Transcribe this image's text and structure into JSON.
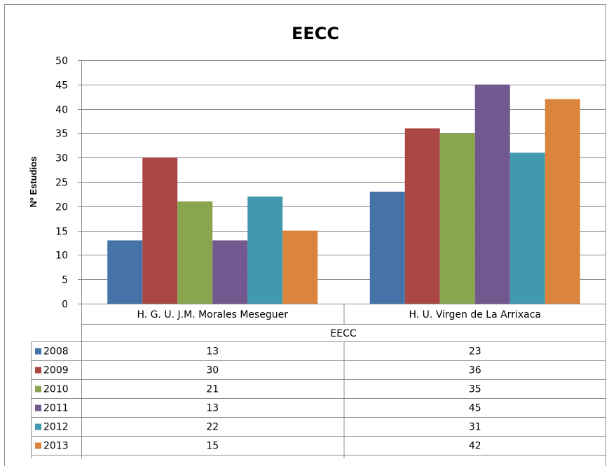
{
  "chart_data": {
    "type": "bar",
    "title": "EECC",
    "xlabel": "EECC",
    "ylabel": "Nº Estudios",
    "ylim": [
      0,
      50
    ],
    "yticks": [
      0,
      5,
      10,
      15,
      20,
      25,
      30,
      35,
      40,
      45,
      50
    ],
    "grid": true,
    "categories": [
      "H. G. U. J.M. Morales Meseguer",
      "H. U. Virgen de La Arrixaca"
    ],
    "series": [
      {
        "name": "2008",
        "color": "#4572A7",
        "values": [
          13,
          23
        ]
      },
      {
        "name": "2009",
        "color": "#AA4643",
        "values": [
          30,
          36
        ]
      },
      {
        "name": "2010",
        "color": "#89A54E",
        "values": [
          21,
          35
        ]
      },
      {
        "name": "2011",
        "color": "#71588F",
        "values": [
          13,
          45
        ]
      },
      {
        "name": "2012",
        "color": "#4198AF",
        "values": [
          22,
          31
        ]
      },
      {
        "name": "2013",
        "color": "#DB843D",
        "values": [
          15,
          42
        ]
      }
    ],
    "data_table": true
  }
}
